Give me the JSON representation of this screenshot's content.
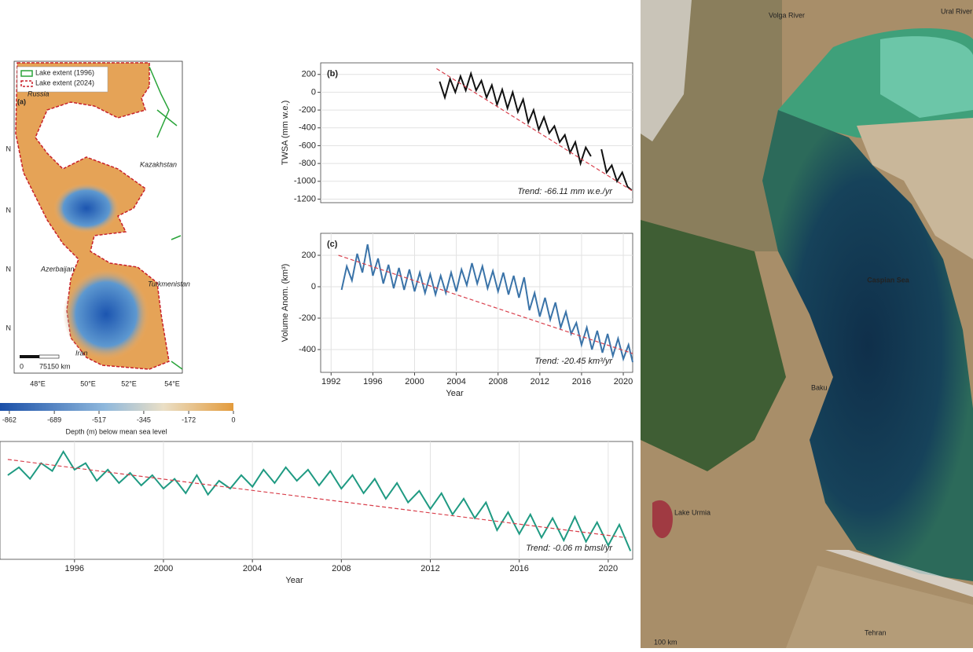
{
  "chart_data": [
    {
      "type": "line",
      "panel_label": "(b)",
      "ylabel": "TWSA (mm w.e.)",
      "color": "#111111",
      "x": [
        2002.4,
        2002.9,
        2003.4,
        2003.9,
        2004.4,
        2004.9,
        2005.4,
        2005.9,
        2006.4,
        2006.9,
        2007.4,
        2007.9,
        2008.4,
        2008.9,
        2009.4,
        2009.9,
        2010.4,
        2010.9,
        2011.4,
        2011.9,
        2012.4,
        2012.9,
        2013.4,
        2013.9,
        2014.4,
        2014.9,
        2015.4,
        2015.9,
        2016.4,
        2016.9,
        2017.4,
        2017.9,
        2018.4,
        2018.9,
        2019.4,
        2019.9,
        2020.4,
        2020.8
      ],
      "values": [
        120,
        -60,
        150,
        0,
        180,
        20,
        210,
        20,
        130,
        -60,
        80,
        -140,
        30,
        -180,
        0,
        -220,
        -80,
        -340,
        -200,
        -420,
        -280,
        -460,
        -380,
        -560,
        -480,
        -680,
        -560,
        -800,
        -620,
        -720,
        null,
        -640,
        -900,
        -820,
        -1000,
        -900,
        -1060,
        -1100
      ],
      "trend_x": [
        2002.1,
        2020.9
      ],
      "trend_values": [
        265,
        -1110
      ],
      "trend_color": "#d9414d",
      "trend_label": "Trend: -66.11 mm w.e./yr",
      "xlim": [
        1991,
        2020.9
      ],
      "ylim": [
        -1240,
        330
      ],
      "yticks": [
        200,
        0,
        -200,
        -400,
        -600,
        -800,
        -1000,
        -1200
      ],
      "grid": true
    },
    {
      "type": "line",
      "panel_label": "(c)",
      "ylabel": "Volume Anom. (km³)",
      "xlabel": "Year",
      "color": "#3a73a8",
      "x": [
        1993.0,
        1993.5,
        1994.0,
        1994.5,
        1995.0,
        1995.5,
        1996.0,
        1996.5,
        1997.0,
        1997.5,
        1998.0,
        1998.5,
        1999.0,
        1999.5,
        2000.0,
        2000.5,
        2001.0,
        2001.5,
        2002.0,
        2002.5,
        2003.0,
        2003.5,
        2004.0,
        2004.5,
        2005.0,
        2005.5,
        2006.0,
        2006.5,
        2007.0,
        2007.5,
        2008.0,
        2008.5,
        2009.0,
        2009.5,
        2010.0,
        2010.5,
        2011.0,
        2011.5,
        2012.0,
        2012.5,
        2013.0,
        2013.5,
        2014.0,
        2014.5,
        2015.0,
        2015.5,
        2016.0,
        2016.5,
        2017.0,
        2017.5,
        2018.0,
        2018.5,
        2019.0,
        2019.5,
        2020.0,
        2020.5,
        2020.9
      ],
      "values": [
        -20,
        130,
        40,
        210,
        90,
        270,
        70,
        180,
        20,
        140,
        -10,
        120,
        -20,
        110,
        -30,
        90,
        -40,
        80,
        -50,
        70,
        -40,
        90,
        -30,
        110,
        10,
        150,
        20,
        130,
        -10,
        100,
        -30,
        90,
        -50,
        70,
        -70,
        60,
        -150,
        -40,
        -190,
        -70,
        -210,
        -100,
        -260,
        -160,
        -300,
        -230,
        -370,
        -260,
        -400,
        -280,
        -420,
        -300,
        -440,
        -330,
        -460,
        -370,
        -480
      ],
      "trend_x": [
        1992.7,
        2020.9
      ],
      "trend_values": [
        200,
        -425
      ],
      "trend_color": "#d9414d",
      "trend_label": "Trend: -20.45 km³/yr",
      "xlim": [
        1991,
        2020.9
      ],
      "ylim": [
        -545,
        340
      ],
      "xticks": [
        1992,
        1996,
        2000,
        2004,
        2008,
        2012,
        2016,
        2020
      ],
      "yticks": [
        200,
        0,
        -200,
        -400
      ],
      "grid": true
    },
    {
      "type": "line",
      "xlabel": "Year",
      "color": "#1f9a82",
      "x": [
        1993.0,
        1993.5,
        1994.0,
        1994.5,
        1995.0,
        1995.5,
        1996.0,
        1996.5,
        1997.0,
        1997.5,
        1998.0,
        1998.5,
        1999.0,
        1999.5,
        2000.0,
        2000.5,
        2001.0,
        2001.5,
        2002.0,
        2002.5,
        2003.0,
        2003.5,
        2004.0,
        2004.5,
        2005.0,
        2005.5,
        2006.0,
        2006.5,
        2007.0,
        2007.5,
        2008.0,
        2008.5,
        2009.0,
        2009.5,
        2010.0,
        2010.5,
        2011.0,
        2011.5,
        2012.0,
        2012.5,
        2013.0,
        2013.5,
        2014.0,
        2014.5,
        2015.0,
        2015.5,
        2016.0,
        2016.5,
        2017.0,
        2017.5,
        2018.0,
        2018.5,
        2019.0,
        2019.5,
        2020.0,
        2020.5,
        2021.0
      ],
      "values": [
        -27.18,
        -27.01,
        -27.26,
        -26.92,
        -27.09,
        -26.67,
        -27.06,
        -26.92,
        -27.3,
        -27.06,
        -27.35,
        -27.13,
        -27.4,
        -27.18,
        -27.47,
        -27.26,
        -27.57,
        -27.18,
        -27.6,
        -27.3,
        -27.47,
        -27.18,
        -27.43,
        -27.06,
        -27.35,
        -27.01,
        -27.3,
        -27.06,
        -27.4,
        -27.09,
        -27.47,
        -27.18,
        -27.57,
        -27.26,
        -27.69,
        -27.35,
        -27.77,
        -27.52,
        -27.91,
        -27.57,
        -28.03,
        -27.69,
        -28.11,
        -27.77,
        -28.37,
        -27.98,
        -28.45,
        -28.03,
        -28.53,
        -28.11,
        -28.59,
        -28.08,
        -28.62,
        -28.2,
        -28.7,
        -28.25,
        -28.82
      ],
      "trend_x": [
        1993.0,
        2020.8
      ],
      "trend_values": [
        -26.84,
        -28.53
      ],
      "trend_color": "#d9414d",
      "trend_label": "Trend: -0.06 m bmsl/yr",
      "xlim": [
        1992.65,
        2021.1
      ],
      "ylim": [
        -29.0,
        -26.45
      ],
      "xticks": [
        1996,
        2000,
        2004,
        2008,
        2012,
        2016,
        2020
      ],
      "grid": true
    }
  ],
  "map": {
    "panel_label": "(a)",
    "legend": [
      "Lake extent (1996)",
      "Lake extent (2024)"
    ],
    "countries": [
      "Russia",
      "Kazakhstan",
      "Azerbaijan",
      "Turkmenistan",
      "Iran"
    ],
    "scale_labels": [
      "0",
      "75",
      "150 km"
    ],
    "lon_labels": [
      "48°E",
      "50°E",
      "52°E",
      "54°E"
    ],
    "lat_labels": [
      "N",
      "N",
      "N",
      "N"
    ],
    "colorbar": {
      "lim": [
        -898,
        0
      ],
      "ticks": [
        -862,
        -689,
        -517,
        -345,
        -172,
        0
      ],
      "label": "Depth (m) below mean sea level"
    }
  },
  "satellite": {
    "labels": [
      "Volga River",
      "Ural River",
      "Caspian Sea",
      "Baku",
      "Lake Urmia",
      "Tehran"
    ],
    "scale": "100 km"
  }
}
